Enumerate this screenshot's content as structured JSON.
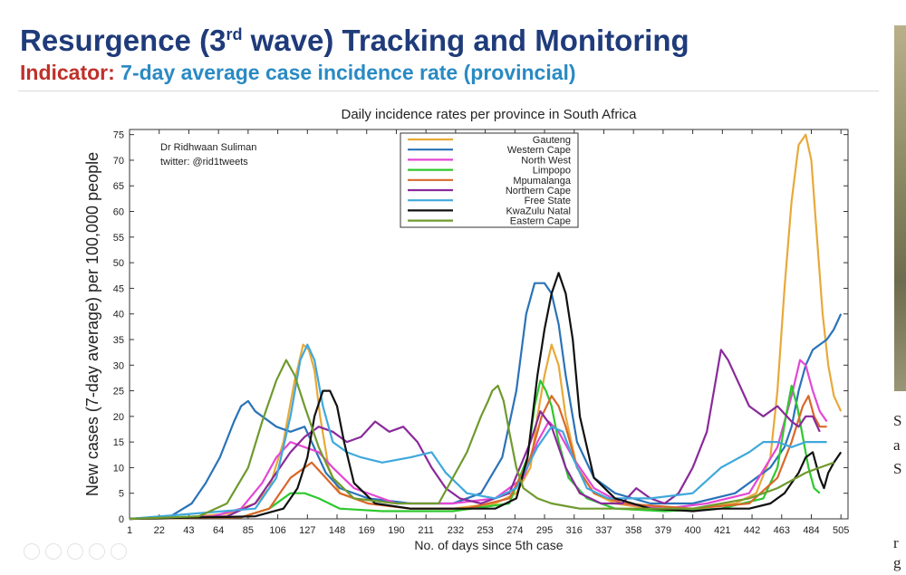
{
  "slide": {
    "title_main": "Resurgence (3",
    "title_sup": "rd",
    "title_end": " wave) Tracking and Monitoring",
    "indicator_label": "Indicator:",
    "indicator_text": " 7-day average case incidence rate (provincial)"
  },
  "side": {
    "lines": [
      "S",
      "a",
      "S",
      "r",
      "g"
    ]
  },
  "chart_data": {
    "type": "line",
    "title": "Daily incidence rates per province in South Africa",
    "xlabel": "No. of days since 5th case",
    "ylabel": "New cases (7-day average) per 100,000 people",
    "xlim": [
      1,
      510
    ],
    "ylim": [
      0,
      76
    ],
    "xticks": [
      1,
      22,
      43,
      64,
      85,
      106,
      127,
      148,
      169,
      190,
      211,
      232,
      253,
      274,
      295,
      316,
      337,
      358,
      379,
      400,
      421,
      442,
      463,
      484,
      505
    ],
    "yticks": [
      0,
      5,
      10,
      15,
      20,
      25,
      30,
      35,
      40,
      45,
      50,
      55,
      60,
      65,
      70,
      75
    ],
    "grid": false,
    "legend_position": "top-center",
    "annotation": [
      "Dr Ridhwaan Suliman",
      "twitter: @rid1tweets"
    ],
    "series": [
      {
        "name": "Gauteng",
        "color": "#e8a93a",
        "x": [
          1,
          40,
          70,
          90,
          100,
          110,
          118,
          124,
          128,
          132,
          136,
          142,
          150,
          170,
          200,
          230,
          260,
          275,
          285,
          290,
          295,
          300,
          305,
          310,
          318,
          330,
          345,
          370,
          400,
          430,
          445,
          455,
          460,
          465,
          470,
          475,
          480,
          484,
          488,
          492,
          496,
          500,
          505
        ],
        "y": [
          0,
          0.3,
          1,
          3,
          6,
          15,
          27,
          34,
          33,
          29,
          20,
          10,
          5,
          3,
          2,
          2,
          3,
          5,
          10,
          20,
          28,
          34,
          30,
          20,
          10,
          5,
          3,
          2,
          2,
          3,
          5,
          12,
          25,
          45,
          62,
          73,
          75,
          70,
          55,
          40,
          30,
          24,
          21
        ]
      },
      {
        "name": "Western Cape",
        "color": "#2a73b8",
        "x": [
          1,
          30,
          45,
          55,
          65,
          75,
          80,
          85,
          90,
          95,
          105,
          115,
          125,
          130,
          135,
          140,
          150,
          170,
          200,
          230,
          250,
          265,
          275,
          282,
          288,
          295,
          300,
          305,
          310,
          318,
          330,
          345,
          370,
          400,
          430,
          455,
          465,
          470,
          475,
          480,
          485,
          490,
          495,
          500,
          505
        ],
        "y": [
          0,
          0.5,
          3,
          7,
          12,
          19,
          22,
          23,
          21,
          20,
          18,
          17,
          18,
          15,
          12,
          9,
          6,
          4,
          3,
          3,
          5,
          12,
          25,
          40,
          46,
          46,
          44,
          38,
          28,
          15,
          8,
          5,
          3,
          3,
          5,
          10,
          14,
          18,
          25,
          30,
          33,
          34,
          35,
          37,
          40
        ]
      },
      {
        "name": "North West",
        "color": "#e447d4",
        "x": [
          1,
          60,
          80,
          95,
          105,
          115,
          125,
          135,
          145,
          160,
          190,
          230,
          260,
          280,
          290,
          298,
          305,
          315,
          330,
          350,
          380,
          410,
          440,
          460,
          470,
          476,
          480,
          485,
          490,
          495
        ],
        "y": [
          0,
          0.5,
          2,
          7,
          12,
          15,
          14,
          13,
          10,
          6,
          3,
          3,
          4,
          8,
          15,
          19,
          17,
          12,
          6,
          3,
          2,
          3,
          5,
          14,
          24,
          31,
          30,
          25,
          21,
          19
        ]
      },
      {
        "name": "Limpopo",
        "color": "#2ec82e",
        "x": [
          1,
          80,
          100,
          115,
          125,
          135,
          150,
          180,
          230,
          270,
          283,
          288,
          292,
          296,
          300,
          305,
          312,
          325,
          345,
          380,
          420,
          450,
          460,
          466,
          470,
          474,
          478,
          482,
          486,
          490
        ],
        "y": [
          0,
          0.3,
          2,
          5,
          5,
          4,
          2,
          1.5,
          1.5,
          3,
          12,
          22,
          27,
          25,
          22,
          15,
          8,
          4,
          2,
          1.5,
          2,
          4,
          10,
          20,
          26,
          22,
          16,
          10,
          6,
          5
        ]
      },
      {
        "name": "Mpumalanga",
        "color": "#d9682a",
        "x": [
          1,
          80,
          100,
          115,
          130,
          140,
          150,
          170,
          200,
          240,
          270,
          285,
          293,
          300,
          305,
          310,
          318,
          330,
          350,
          400,
          440,
          460,
          470,
          478,
          482,
          486,
          490,
          495
        ],
        "y": [
          0,
          0.3,
          2,
          8,
          11,
          8,
          5,
          3,
          2,
          2,
          4,
          12,
          20,
          24,
          22,
          18,
          10,
          5,
          3,
          2,
          3,
          8,
          15,
          22,
          24,
          20,
          18,
          18
        ]
      },
      {
        "name": "Northern Cape",
        "color": "#8a2a9a",
        "x": [
          1,
          70,
          90,
          105,
          115,
          125,
          135,
          145,
          155,
          165,
          175,
          185,
          195,
          205,
          215,
          225,
          235,
          250,
          270,
          285,
          292,
          300,
          310,
          320,
          335,
          350,
          360,
          370,
          380,
          390,
          400,
          410,
          415,
          420,
          425,
          430,
          440,
          450,
          460,
          470,
          475,
          480,
          485,
          490
        ],
        "y": [
          0,
          0.5,
          3,
          9,
          13,
          16,
          18,
          17,
          15,
          16,
          19,
          17,
          18,
          15,
          10,
          6,
          4,
          3,
          5,
          15,
          21,
          18,
          10,
          5,
          3,
          3,
          6,
          4,
          3,
          5,
          10,
          17,
          25,
          33,
          31,
          28,
          22,
          20,
          22,
          19,
          18,
          20,
          20,
          17
        ]
      },
      {
        "name": "Free State",
        "color": "#3fa8dc",
        "x": [
          1,
          90,
          105,
          115,
          122,
          127,
          132,
          138,
          145,
          155,
          165,
          180,
          200,
          215,
          225,
          240,
          260,
          275,
          290,
          300,
          308,
          315,
          325,
          340,
          370,
          400,
          420,
          440,
          450,
          460,
          470,
          480,
          490,
          495
        ],
        "y": [
          0,
          2,
          8,
          20,
          31,
          34,
          31,
          22,
          15,
          13,
          12,
          11,
          12,
          13,
          9,
          5,
          4,
          6,
          14,
          18,
          17,
          12,
          6,
          4,
          4,
          5,
          10,
          13,
          15,
          15,
          14,
          15,
          15,
          15
        ]
      },
      {
        "name": "KwaZulu Natal",
        "color": "#111111",
        "x": [
          1,
          90,
          110,
          120,
          127,
          132,
          138,
          143,
          148,
          153,
          160,
          175,
          200,
          230,
          260,
          275,
          283,
          290,
          295,
          300,
          305,
          310,
          315,
          320,
          330,
          345,
          370,
          400,
          420,
          440,
          455,
          465,
          470,
          475,
          480,
          485,
          490,
          493,
          496,
          500,
          505
        ],
        "y": [
          0,
          0.5,
          2,
          6,
          12,
          20,
          25,
          25,
          22,
          15,
          7,
          3,
          2,
          2,
          2,
          4,
          12,
          28,
          37,
          44,
          48,
          44,
          35,
          20,
          8,
          4,
          2,
          1.5,
          2,
          2,
          3,
          5,
          7,
          9,
          12,
          13,
          8,
          6,
          9,
          11,
          13
        ]
      },
      {
        "name": "Eastern Cape",
        "color": "#6f9a2e",
        "x": [
          1,
          50,
          70,
          85,
          95,
          105,
          112,
          118,
          125,
          135,
          145,
          160,
          190,
          220,
          240,
          250,
          255,
          258,
          262,
          266,
          270,
          275,
          280,
          290,
          300,
          320,
          340,
          370,
          400,
          440,
          460,
          480,
          490,
          500
        ],
        "y": [
          0,
          0.5,
          3,
          10,
          19,
          27,
          31,
          28,
          22,
          14,
          8,
          4,
          3,
          3,
          13,
          20,
          23,
          25,
          26,
          23,
          17,
          10,
          6,
          4,
          3,
          2,
          2,
          2,
          2,
          4,
          6,
          9,
          10,
          11
        ]
      }
    ]
  }
}
